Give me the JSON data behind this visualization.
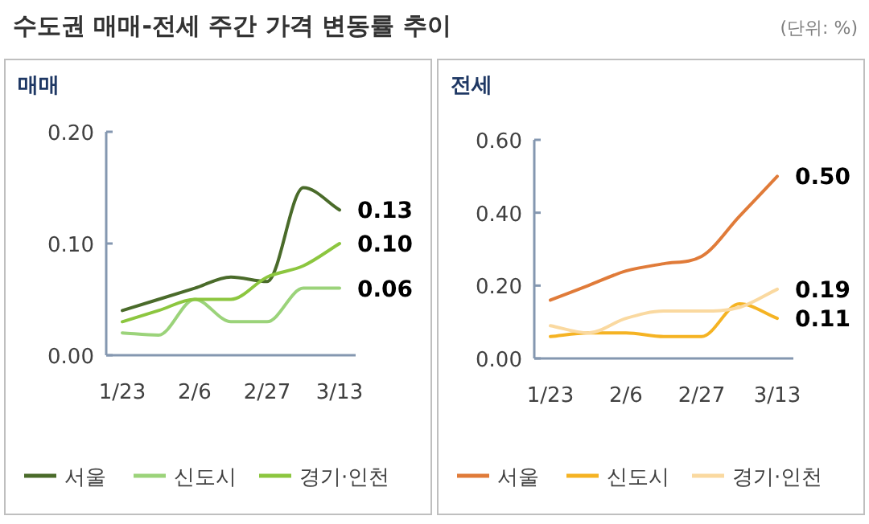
{
  "chart_data": [
    {
      "type": "line",
      "title": "수도권 매매-전세 주간 가격 변동률 추이",
      "subtitle": "매매",
      "categories": [
        "1/23",
        null,
        "2/6",
        null,
        "2/27",
        null,
        "3/13"
      ],
      "ylim": [
        0,
        0.2
      ],
      "yticks": [
        {
          "value": 0,
          "label": "0.00"
        },
        {
          "value": 0.1,
          "label": "0.10"
        },
        {
          "value": 0.2,
          "label": "0.20"
        }
      ],
      "legend": "bottom",
      "marker": "none",
      "line_style": "solid",
      "grid": false,
      "series": [
        {
          "name": "서울",
          "color": "#4a6b2a",
          "values": [
            0.04,
            0.05,
            0.06,
            0.07,
            0.066,
            0.15,
            0.13
          ],
          "value_labels": [
            null,
            null,
            null,
            null,
            null,
            null,
            "0.13"
          ]
        },
        {
          "name": "신도시",
          "color": "#9bd37a",
          "values": [
            0.02,
            0.018,
            0.05,
            0.03,
            0.03,
            0.06,
            0.06
          ],
          "value_labels": [
            null,
            null,
            null,
            null,
            null,
            null,
            "0.06"
          ]
        },
        {
          "name": "경기·인천",
          "color": "#8cc63f",
          "values": [
            0.03,
            0.04,
            0.05,
            0.05,
            0.07,
            0.08,
            0.1
          ],
          "value_labels": [
            null,
            null,
            null,
            null,
            null,
            null,
            "0.10"
          ]
        }
      ]
    },
    {
      "type": "line",
      "subtitle": "전세",
      "annotations": [
        "(단위: %)"
      ],
      "categories": [
        "1/23",
        null,
        "2/6",
        null,
        "2/27",
        null,
        "3/13"
      ],
      "ylim": [
        0,
        0.6
      ],
      "yticks": [
        {
          "value": 0,
          "label": "0.00"
        },
        {
          "value": 0.2,
          "label": "0.20"
        },
        {
          "value": 0.4,
          "label": "0.40"
        },
        {
          "value": 0.6,
          "label": "0.60"
        }
      ],
      "legend": "bottom",
      "marker": "none",
      "line_style": "solid",
      "grid": false,
      "series": [
        {
          "name": "서울",
          "color": "#e07b39",
          "values": [
            0.16,
            0.2,
            0.24,
            0.26,
            0.28,
            0.39,
            0.5
          ],
          "value_labels": [
            null,
            null,
            null,
            null,
            null,
            null,
            "0.50"
          ]
        },
        {
          "name": "신도시",
          "color": "#f5b323",
          "values": [
            0.06,
            0.07,
            0.07,
            0.06,
            0.06,
            0.15,
            0.11
          ],
          "value_labels": [
            null,
            null,
            null,
            null,
            null,
            null,
            "0.11"
          ]
        },
        {
          "name": "경기·인천",
          "color": "#fad9a0",
          "values": [
            0.09,
            0.07,
            0.11,
            0.13,
            0.13,
            0.14,
            0.19
          ],
          "value_labels": [
            null,
            null,
            null,
            null,
            null,
            null,
            "0.19"
          ]
        }
      ]
    }
  ]
}
